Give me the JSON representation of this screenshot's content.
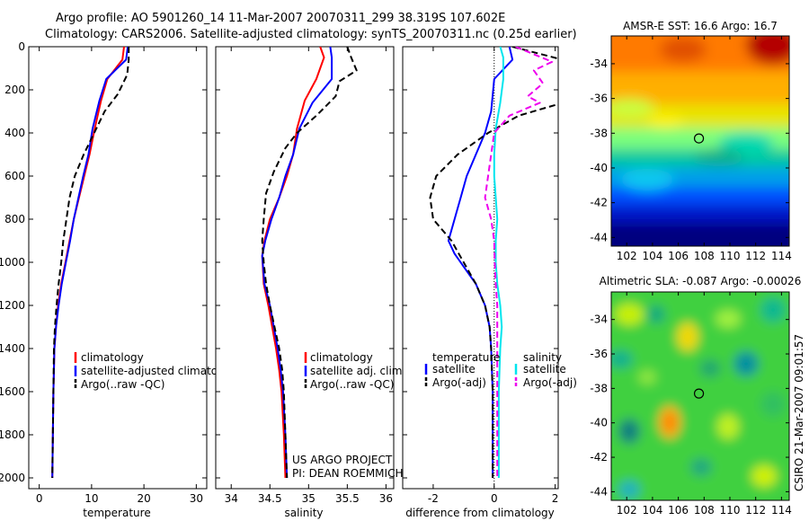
{
  "title_line1": "Argo profile: AO 5901260_14 11-Mar-2007 20070311_299 38.319S 107.602E",
  "title_line2": "Climatology: CARS2006. Satellite-adjusted climatology: synTS_20070311.nc (0.25d earlier)",
  "side_label": "CSIRO 21-Mar-2007 09:01:57",
  "colors": {
    "clim": "#ff0000",
    "sat": "#0000ff",
    "argo": "#000000",
    "sal_sat": "#00e5ee",
    "sal_argo": "#ee00ee"
  },
  "chart_data": [
    {
      "type": "line",
      "xlabel": "temperature",
      "xlim": [
        -2,
        32
      ],
      "xticks": [
        "0",
        "10",
        "20",
        "30"
      ],
      "ylim": [
        2050,
        0
      ],
      "yticks": [
        "0",
        "200",
        "400",
        "600",
        "800",
        "1000",
        "1200",
        "1400",
        "1600",
        "1800",
        "2000"
      ],
      "legend": {
        "placement": "bottom-right",
        "entries": [
          "climatology",
          "satellite-adjusted climatology",
          "Argo(..raw -QC)"
        ]
      },
      "series": [
        {
          "key": "clim",
          "color": "#ff0000",
          "dash": "solid",
          "points": [
            [
              16.2,
              0
            ],
            [
              15.9,
              60
            ],
            [
              13,
              150
            ],
            [
              11.8,
              250
            ],
            [
              10.6,
              380
            ],
            [
              9.6,
              500
            ],
            [
              8.6,
              600
            ],
            [
              7.6,
              700
            ],
            [
              6.6,
              800
            ],
            [
              5.8,
              900
            ],
            [
              5,
              1000
            ],
            [
              4.2,
              1100
            ],
            [
              3.6,
              1200
            ],
            [
              3.2,
              1300
            ],
            [
              2.9,
              1400
            ],
            [
              2.8,
              1500
            ],
            [
              2.7,
              1600
            ],
            [
              2.6,
              1800
            ],
            [
              2.5,
              2000
            ]
          ]
        },
        {
          "key": "sat",
          "color": "#0000ff",
          "dash": "solid",
          "points": [
            [
              16.9,
              0
            ],
            [
              16.6,
              60
            ],
            [
              12.8,
              150
            ],
            [
              11.5,
              250
            ],
            [
              10.2,
              380
            ],
            [
              9.4,
              500
            ],
            [
              8.4,
              600
            ],
            [
              7.5,
              700
            ],
            [
              6.6,
              800
            ],
            [
              5.9,
              900
            ],
            [
              5.1,
              1000
            ],
            [
              4.3,
              1100
            ],
            [
              3.7,
              1200
            ],
            [
              3.2,
              1300
            ],
            [
              2.9,
              1400
            ],
            [
              2.8,
              1500
            ],
            [
              2.7,
              1600
            ],
            [
              2.6,
              1800
            ],
            [
              2.5,
              2000
            ]
          ]
        },
        {
          "key": "argo",
          "color": "#000000",
          "dash": "dashed",
          "points": [
            [
              17.1,
              0
            ],
            [
              17.1,
              60
            ],
            [
              16.8,
              130
            ],
            [
              15,
              220
            ],
            [
              12.5,
              300
            ],
            [
              10.5,
              400
            ],
            [
              8.5,
              500
            ],
            [
              6.8,
              600
            ],
            [
              5.8,
              700
            ],
            [
              5.2,
              800
            ],
            [
              4.6,
              900
            ],
            [
              4.2,
              1000
            ],
            [
              3.7,
              1100
            ],
            [
              3.3,
              1200
            ],
            [
              3,
              1300
            ],
            [
              2.8,
              1400
            ],
            [
              2.7,
              1600
            ],
            [
              2.6,
              1800
            ],
            [
              2.5,
              2000
            ]
          ]
        }
      ]
    },
    {
      "type": "line",
      "xlabel": "salinity",
      "xlim": [
        33.8,
        36.1
      ],
      "xticks": [
        "34",
        "34.5",
        "35",
        "35.5",
        "36"
      ],
      "ylim": [
        2050,
        0
      ],
      "legend": {
        "placement": "bottom-right",
        "entries": [
          "climatology",
          "satellite adj. clim.",
          "Argo(..raw -QC)"
        ]
      },
      "annotation": {
        "line1": "US ARGO PROJECT",
        "line2": "PI: DEAN ROEMMICH"
      },
      "series": [
        {
          "key": "clim",
          "color": "#ff0000",
          "dash": "solid",
          "points": [
            [
              35.15,
              0
            ],
            [
              35.2,
              50
            ],
            [
              35.1,
              150
            ],
            [
              34.95,
              250
            ],
            [
              34.85,
              380
            ],
            [
              34.8,
              500
            ],
            [
              34.72,
              600
            ],
            [
              34.62,
              700
            ],
            [
              34.5,
              800
            ],
            [
              34.43,
              900
            ],
            [
              34.4,
              970
            ],
            [
              34.42,
              1100
            ],
            [
              34.48,
              1200
            ],
            [
              34.53,
              1300
            ],
            [
              34.58,
              1400
            ],
            [
              34.62,
              1500
            ],
            [
              34.65,
              1600
            ],
            [
              34.68,
              1800
            ],
            [
              34.7,
              2000
            ]
          ]
        },
        {
          "key": "sat",
          "color": "#0000ff",
          "dash": "solid",
          "points": [
            [
              35.28,
              0
            ],
            [
              35.3,
              50
            ],
            [
              35.3,
              150
            ],
            [
              35.05,
              260
            ],
            [
              34.88,
              380
            ],
            [
              34.8,
              500
            ],
            [
              34.7,
              600
            ],
            [
              34.62,
              700
            ],
            [
              34.52,
              800
            ],
            [
              34.44,
              900
            ],
            [
              34.4,
              970
            ],
            [
              34.43,
              1100
            ],
            [
              34.5,
              1200
            ],
            [
              34.55,
              1300
            ],
            [
              34.6,
              1400
            ],
            [
              34.64,
              1500
            ],
            [
              34.67,
              1600
            ],
            [
              34.7,
              1800
            ],
            [
              34.72,
              2000
            ]
          ]
        },
        {
          "key": "argo",
          "color": "#000000",
          "dash": "dashed",
          "points": [
            [
              35.5,
              0
            ],
            [
              35.55,
              50
            ],
            [
              35.62,
              110
            ],
            [
              35.4,
              160
            ],
            [
              35.35,
              230
            ],
            [
              35.1,
              320
            ],
            [
              34.85,
              400
            ],
            [
              34.7,
              470
            ],
            [
              34.55,
              580
            ],
            [
              34.45,
              680
            ],
            [
              34.42,
              800
            ],
            [
              34.4,
              900
            ],
            [
              34.42,
              1000
            ],
            [
              34.45,
              1100
            ],
            [
              34.5,
              1200
            ],
            [
              34.56,
              1300
            ],
            [
              34.62,
              1400
            ],
            [
              34.66,
              1500
            ],
            [
              34.68,
              1600
            ],
            [
              34.7,
              1800
            ],
            [
              34.72,
              2000
            ]
          ]
        }
      ]
    },
    {
      "type": "line",
      "xlabel": "difference from climatology",
      "xlim": [
        -3,
        2.1
      ],
      "xticks": [
        "-2",
        "0",
        "2"
      ],
      "ylim": [
        2050,
        0
      ],
      "zero_line": "dotted",
      "legend": {
        "placement": "bottom",
        "entries": [
          "temperature",
          "satellite",
          "Argo(-adj)",
          "salinity",
          "satellite",
          "Argo(-adj)"
        ]
      },
      "series": [
        {
          "key": "t_sat",
          "color": "#0000ff",
          "dash": "solid",
          "points": [
            [
              0.5,
              0
            ],
            [
              0.6,
              60
            ],
            [
              0,
              150
            ],
            [
              -0.1,
              300
            ],
            [
              -0.3,
              400
            ],
            [
              -0.6,
              500
            ],
            [
              -0.9,
              600
            ],
            [
              -1.1,
              700
            ],
            [
              -1.3,
              800
            ],
            [
              -1.5,
              900
            ],
            [
              -1.3,
              960
            ],
            [
              -1,
              1020
            ],
            [
              -0.6,
              1100
            ],
            [
              -0.3,
              1200
            ],
            [
              -0.15,
              1300
            ],
            [
              -0.1,
              1400
            ],
            [
              -0.05,
              1600
            ],
            [
              -0.05,
              2000
            ]
          ]
        },
        {
          "key": "t_argo",
          "color": "#000000",
          "dash": "dashed",
          "points": [
            [
              0.6,
              0
            ],
            [
              2.5,
              70
            ],
            [
              3,
              120
            ],
            [
              2.2,
              200
            ],
            [
              2.5,
              250
            ],
            [
              0.8,
              320
            ],
            [
              -0.2,
              400
            ],
            [
              -1.2,
              500
            ],
            [
              -1.9,
              600
            ],
            [
              -2.1,
              700
            ],
            [
              -2,
              800
            ],
            [
              -1.4,
              900
            ],
            [
              -1,
              1000
            ],
            [
              -0.6,
              1100
            ],
            [
              -0.3,
              1200
            ],
            [
              -0.15,
              1300
            ],
            [
              -0.1,
              1400
            ],
            [
              -0.05,
              1600
            ],
            [
              -0.05,
              2000
            ]
          ]
        },
        {
          "key": "s_sat",
          "color": "#00e5ee",
          "dash": "solid",
          "points": [
            [
              0.2,
              0
            ],
            [
              0.3,
              50
            ],
            [
              0.3,
              150
            ],
            [
              0.2,
              260
            ],
            [
              0.05,
              380
            ],
            [
              0,
              500
            ],
            [
              0,
              600
            ],
            [
              0.05,
              700
            ],
            [
              0.1,
              800
            ],
            [
              0.05,
              900
            ],
            [
              0.05,
              1000
            ],
            [
              0.1,
              1100
            ],
            [
              0.2,
              1200
            ],
            [
              0.25,
              1300
            ],
            [
              0.2,
              1400
            ],
            [
              0.15,
              1600
            ],
            [
              0.15,
              2000
            ]
          ]
        },
        {
          "key": "s_argo",
          "color": "#ee00ee",
          "dash": "dashed",
          "points": [
            [
              0.7,
              0
            ],
            [
              1.9,
              70
            ],
            [
              1.3,
              110
            ],
            [
              1.6,
              170
            ],
            [
              1.1,
              230
            ],
            [
              1.5,
              260
            ],
            [
              0.5,
              320
            ],
            [
              0,
              400
            ],
            [
              -0.1,
              500
            ],
            [
              -0.2,
              600
            ],
            [
              -0.3,
              700
            ],
            [
              -0.1,
              800
            ],
            [
              0,
              900
            ],
            [
              0.02,
              1000
            ],
            [
              0.05,
              1100
            ],
            [
              0.1,
              1200
            ],
            [
              0.1,
              1400
            ],
            [
              0.1,
              1600
            ],
            [
              0.1,
              2000
            ]
          ]
        }
      ]
    },
    {
      "type": "heatmap",
      "title": "AMSR-E SST: 16.6 Argo: 16.7",
      "xlim": [
        100.8,
        114.6
      ],
      "ylim": [
        -44.5,
        -32.4
      ],
      "xticks": [
        "102",
        "104",
        "106",
        "108",
        "110",
        "112",
        "114"
      ],
      "yticks": [
        "-34",
        "-36",
        "-38",
        "-40",
        "-42",
        "-44"
      ],
      "marker": {
        "lon": 107.6,
        "lat": -38.3
      },
      "colormap": "jet"
    },
    {
      "type": "heatmap",
      "title": "Altimetric SLA: -0.087 Argo: -0.00026",
      "xlim": [
        100.8,
        114.6
      ],
      "ylim": [
        -44.5,
        -32.4
      ],
      "xticks": [
        "102",
        "104",
        "106",
        "108",
        "110",
        "112",
        "114"
      ],
      "yticks": [
        "-34",
        "-36",
        "-38",
        "-40",
        "-42",
        "-44"
      ],
      "marker": {
        "lon": 107.6,
        "lat": -38.3
      },
      "colormap": "jet"
    }
  ]
}
